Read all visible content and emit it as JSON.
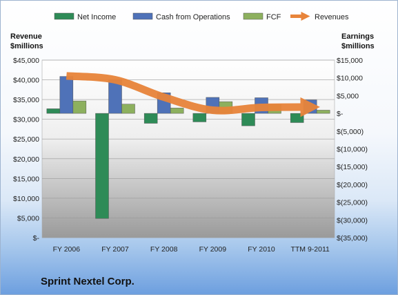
{
  "company": "Sprint Nextel Corp.",
  "chart_data": {
    "type": "bar",
    "left_axis_title": [
      "Revenue",
      "$millions"
    ],
    "right_axis_title": [
      "Earnings",
      "$millions"
    ],
    "categories": [
      "FY 2006",
      "FY 2007",
      "FY 2008",
      "FY 2009",
      "FY 2010",
      "TTM 9-2011"
    ],
    "left_ticks": [
      "$45,000",
      "$40,000",
      "$35,000",
      "$30,000",
      "$25,000",
      "$20,000",
      "$15,000",
      "$10,000",
      "$5,000",
      "$-"
    ],
    "right_ticks": [
      "$15,000",
      "$10,000",
      "$5,000",
      "$-",
      "$(5,000)",
      "$(10,000)",
      "$(15,000)",
      "$(20,000)",
      "$(25,000)",
      "$(30,000)",
      "$(35,000)"
    ],
    "left_range": [
      0,
      45000
    ],
    "right_range": [
      -35000,
      15000
    ],
    "grid": true,
    "legend_position": "top",
    "series": [
      {
        "name": "Net Income",
        "axis": "right",
        "kind": "bar",
        "color": "#2e8b57",
        "values": [
          1300,
          -29600,
          -2800,
          -2400,
          -3500,
          -2600
        ]
      },
      {
        "name": "Cash from Operations",
        "axis": "right",
        "kind": "bar",
        "color": "#4f72b8",
        "values": [
          10400,
          9500,
          5800,
          4500,
          4400,
          3800
        ]
      },
      {
        "name": "FCF",
        "axis": "right",
        "kind": "bar",
        "color": "#8db05e",
        "values": [
          3500,
          2600,
          1500,
          3300,
          2500,
          900
        ]
      },
      {
        "name": "Revenues",
        "axis": "left",
        "kind": "line",
        "color": "#e8843a",
        "values": [
          41000,
          40000,
          35600,
          32300,
          33000,
          33100
        ]
      }
    ]
  }
}
